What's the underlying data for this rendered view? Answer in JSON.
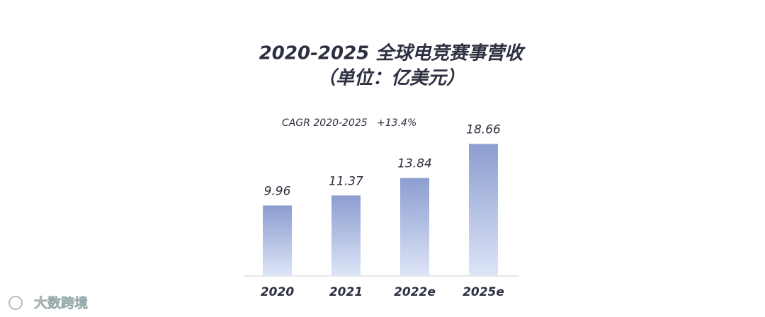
{
  "chart_data": {
    "type": "bar",
    "title": "2020-2025 全球电竞赛事营收",
    "subtitle": "（单位：亿美元）",
    "annotation": "CAGR 2020-2025   +13.4%",
    "categories": [
      "2020",
      "2021",
      "2022e",
      "2025e"
    ],
    "values": [
      9.96,
      11.37,
      13.84,
      18.66
    ],
    "color": "#8c9dd0",
    "watermark": "大数跨境"
  }
}
